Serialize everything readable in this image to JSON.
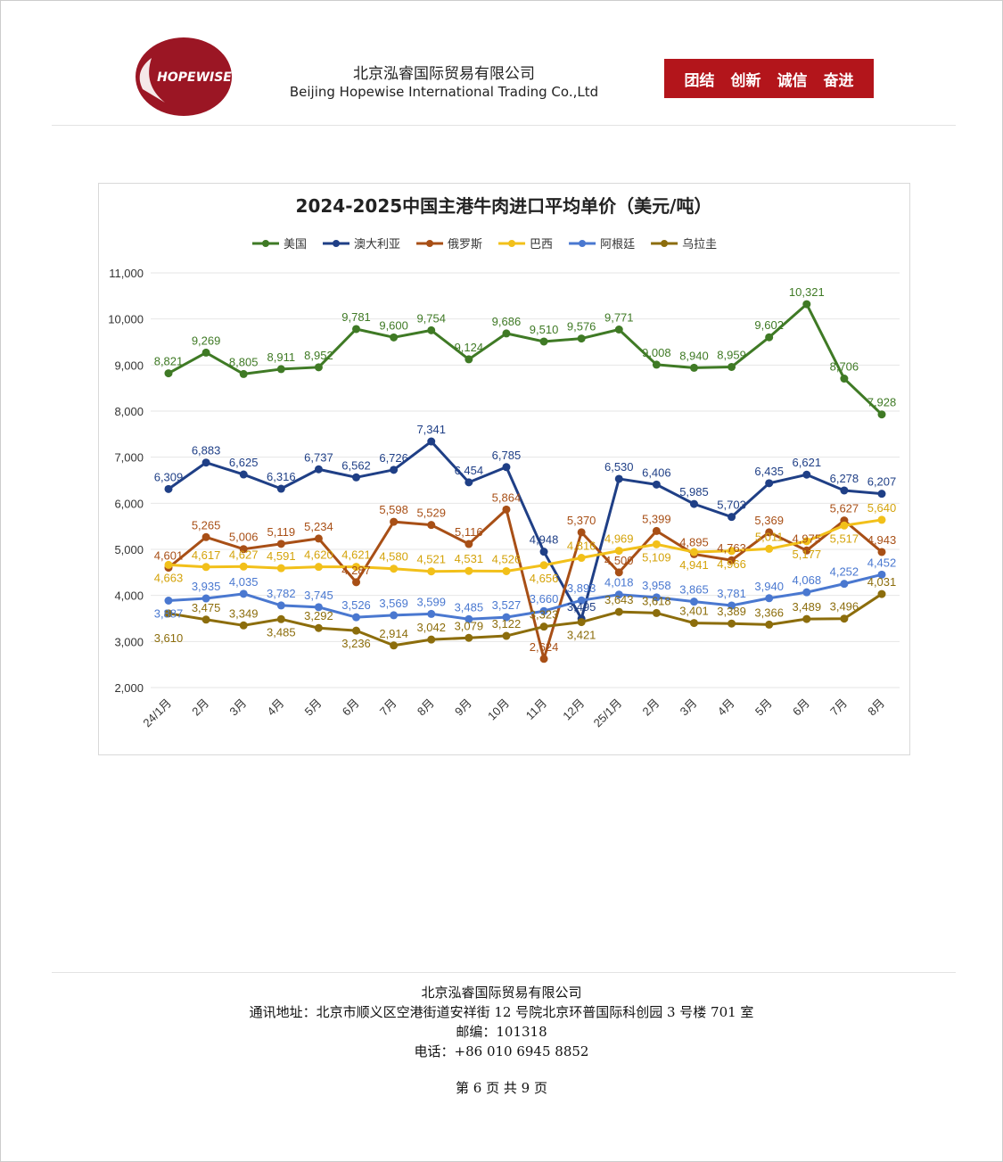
{
  "header": {
    "logo_text": "HOPEWISE",
    "company_cn": "北京泓睿国际贸易有限公司",
    "company_en": "Beijing Hopewise International Trading Co.,Ltd",
    "motto": [
      "团结",
      "创新",
      "诚信",
      "奋进"
    ],
    "brand_color": "#b3151b"
  },
  "watermark": "北京泓睿",
  "chart_data": {
    "type": "line",
    "title": "2024-2025中国主港牛肉进口平均单价（美元/吨）",
    "categories": [
      "24/1月",
      "2月",
      "3月",
      "4月",
      "5月",
      "6月",
      "7月",
      "8月",
      "9月",
      "10月",
      "11月",
      "12月",
      "25/1月",
      "2月",
      "3月",
      "4月",
      "5月",
      "6月",
      "7月",
      "8月"
    ],
    "ylim": [
      2000,
      11000
    ],
    "yticks": [
      2000,
      3000,
      4000,
      5000,
      6000,
      7000,
      8000,
      9000,
      10000,
      11000
    ],
    "ytick_labels": [
      "2,000",
      "3,000",
      "4,000",
      "5,000",
      "6,000",
      "7,000",
      "8,000",
      "9,000",
      "10,000",
      "11,000"
    ],
    "grid": true,
    "legend_position": "top",
    "series": [
      {
        "name": "美国",
        "color": "#3f7a25",
        "values": [
          8821,
          9269,
          8805,
          8911,
          8952,
          9781,
          9600,
          9754,
          9124,
          9686,
          9510,
          9576,
          9771,
          9008,
          8940,
          8959,
          9602,
          10321,
          8706,
          7928
        ]
      },
      {
        "name": "澳大利亚",
        "color": "#1f3f86",
        "values": [
          6309,
          6883,
          6625,
          6316,
          6737,
          6562,
          6726,
          7341,
          6454,
          6785,
          4948,
          3495,
          6530,
          6406,
          5985,
          5703,
          6435,
          6621,
          6278,
          6207
        ]
      },
      {
        "name": "俄罗斯",
        "color": "#a84f16",
        "values": [
          4601,
          5265,
          5006,
          5119,
          5234,
          4287,
          5598,
          5529,
          5116,
          5864,
          2624,
          5370,
          4500,
          5399,
          4895,
          4763,
          5369,
          4975,
          5627,
          4943
        ]
      },
      {
        "name": "巴西",
        "color": "#f2c01a",
        "values": [
          4663,
          4617,
          4627,
          4591,
          4620,
          4621,
          4580,
          4521,
          4531,
          4526,
          4656,
          4816,
          4969,
          5109,
          4941,
          4966,
          5011,
          5177,
          5517,
          5640
        ]
      },
      {
        "name": "阿根廷",
        "color": "#4a78d0",
        "values": [
          3887,
          3935,
          4035,
          3782,
          3745,
          3526,
          3569,
          3599,
          3485,
          3527,
          3660,
          3893,
          4018,
          3958,
          3865,
          3781,
          3940,
          4068,
          4252,
          4452
        ]
      },
      {
        "name": "乌拉圭",
        "color": "#8c6d0c",
        "values": [
          3610,
          3475,
          3349,
          3485,
          3292,
          3236,
          2914,
          3042,
          3079,
          3122,
          3323,
          3421,
          3643,
          3618,
          3401,
          3389,
          3366,
          3489,
          3496,
          4031
        ]
      }
    ]
  },
  "footer": {
    "company": "北京泓睿国际贸易有限公司",
    "address": "通讯地址：北京市顺义区空港街道安祥街 12 号院北京环普国际科创园 3 号楼 701 室",
    "postcode": "邮编：101318",
    "phone": "电话：+86 010 6945 8852",
    "page": "第 6 页 共 9 页"
  }
}
